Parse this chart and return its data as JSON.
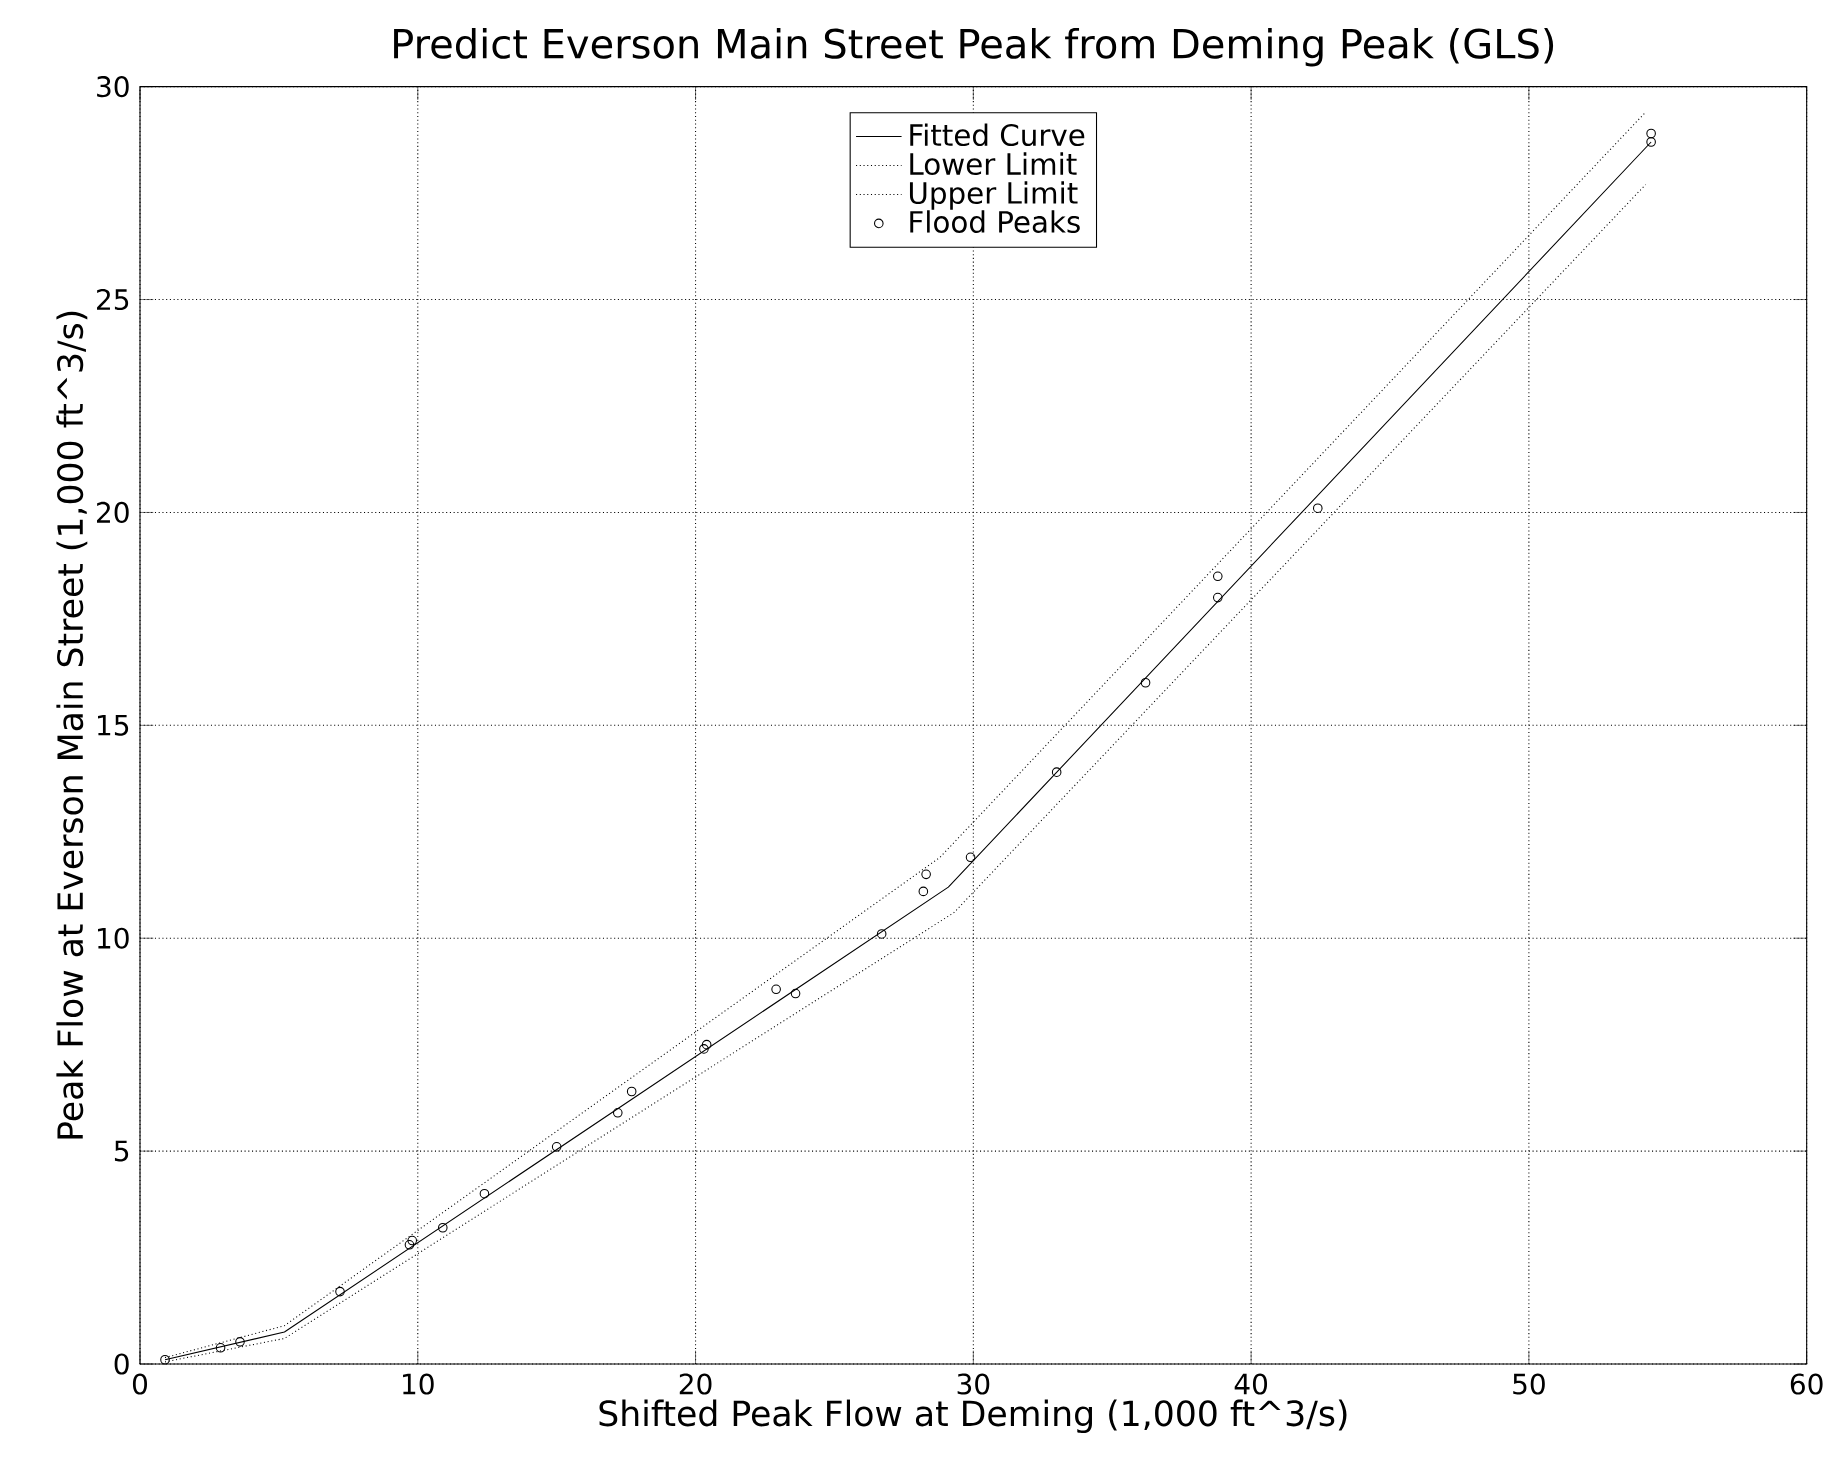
{
  "chart_data": {
    "type": "line",
    "title": "Predict Everson Main Street Peak from Deming Peak (GLS)",
    "xlabel": "Shifted Peak Flow at Deming  (1,000 ft^3/s)",
    "ylabel": "Peak Flow at Everson Main Street (1,000 ft^3/s)",
    "xlim": [
      0,
      60
    ],
    "ylim": [
      0,
      30
    ],
    "xticks": [
      0,
      10,
      20,
      30,
      40,
      50,
      60
    ],
    "yticks": [
      0,
      5,
      10,
      15,
      20,
      25,
      30
    ],
    "grid": true,
    "legend": "top",
    "series": [
      {
        "name": "Fitted Curve",
        "color": "#000000",
        "line_style": "solid",
        "x": [
          0.9,
          5.2,
          29.1,
          54.4
        ],
        "values": [
          0.1,
          0.75,
          11.2,
          28.7
        ]
      },
      {
        "name": "Lower Limit",
        "color": "#000000",
        "line_style": "dotted",
        "x": [
          0.9,
          5.2,
          29.3,
          54.2
        ],
        "values": [
          0.05,
          0.6,
          10.6,
          27.7
        ]
      },
      {
        "name": "Upper Limit",
        "color": "#000000",
        "line_style": "dotted",
        "x": [
          0.9,
          5.2,
          28.8,
          54.2
        ],
        "values": [
          0.15,
          0.9,
          11.9,
          29.4
        ]
      },
      {
        "name": "Flood Peaks",
        "type": "scatter",
        "color": "#000000",
        "marker": "circle",
        "x": [
          0.9,
          2.9,
          3.6,
          7.2,
          9.7,
          9.8,
          10.9,
          12.4,
          15.0,
          17.2,
          17.7,
          20.3,
          20.4,
          22.9,
          23.6,
          26.7,
          28.2,
          28.3,
          29.9,
          33.0,
          36.2,
          38.8,
          38.8,
          42.4,
          54.4,
          54.4
        ],
        "values": [
          0.1,
          0.38,
          0.52,
          1.7,
          2.8,
          2.9,
          3.2,
          4.0,
          5.1,
          5.9,
          6.4,
          7.4,
          7.5,
          8.8,
          8.7,
          10.1,
          11.1,
          11.5,
          11.9,
          13.9,
          16.0,
          18.0,
          18.5,
          20.1,
          28.7,
          28.9
        ]
      }
    ]
  }
}
